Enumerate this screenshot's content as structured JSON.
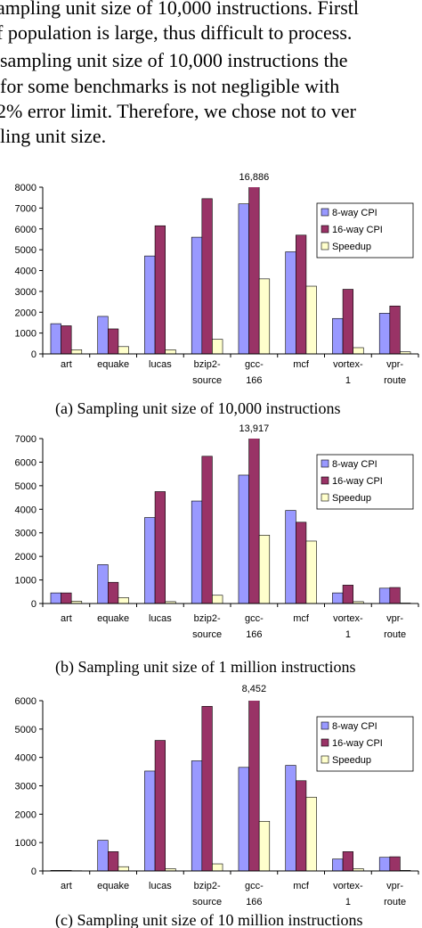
{
  "text_lines": [
    "ampling unit size of 10,000 instructions.  Firstl",
    "f population is large, thus difficult to process.",
    "sampling unit size of 10,000 instructions the",
    "for some benchmarks is not negligible with",
    "2% error limit. Therefore, we chose not to ver",
    "ling unit size."
  ],
  "chart_data": [
    {
      "type": "bar",
      "caption": "(a) Sampling unit size of 10,000 instructions",
      "categories": [
        "art",
        "equake",
        "lucas",
        "bzip2-\nsource",
        "gcc-\n166",
        "mcf",
        "vortex-\n1",
        "vpr-\nroute"
      ],
      "series": [
        {
          "name": "8-way CPI",
          "color": "#9999ff",
          "values": [
            1450,
            1800,
            4700,
            5600,
            7200,
            4900,
            1700,
            1950
          ]
        },
        {
          "name": "16-way CPI",
          "color": "#993366",
          "values": [
            1350,
            1200,
            6150,
            7450,
            16886,
            5700,
            3100,
            2300
          ],
          "value_labels": [
            null,
            null,
            null,
            null,
            "16,886",
            null,
            null,
            null
          ]
        },
        {
          "name": "Speedup",
          "color": "#ffffcc",
          "values": [
            200,
            350,
            200,
            700,
            3600,
            3250,
            300,
            100
          ]
        }
      ],
      "ylim": [
        0,
        8000
      ],
      "yticks": [
        0,
        1000,
        2000,
        3000,
        4000,
        5000,
        6000,
        7000,
        8000
      ],
      "legend": "upper right"
    },
    {
      "type": "bar",
      "caption": "(b) Sampling unit size of 1 million instructions",
      "categories": [
        "art",
        "equake",
        "lucas",
        "bzip2-\nsource",
        "gcc-\n166",
        "mcf",
        "vortex-\n1",
        "vpr-\nroute"
      ],
      "series": [
        {
          "name": "8-way CPI",
          "color": "#9999ff",
          "values": [
            450,
            1650,
            3650,
            4350,
            5450,
            3950,
            450,
            650
          ]
        },
        {
          "name": "16-way CPI",
          "color": "#993366",
          "values": [
            450,
            900,
            4750,
            6250,
            13917,
            3450,
            780,
            680
          ],
          "value_labels": [
            null,
            null,
            null,
            null,
            "13,917",
            null,
            null,
            null
          ]
        },
        {
          "name": "Speedup",
          "color": "#ffffcc",
          "values": [
            100,
            250,
            80,
            350,
            2900,
            2650,
            80,
            20
          ]
        }
      ],
      "ylim": [
        0,
        7000
      ],
      "yticks": [
        0,
        1000,
        2000,
        3000,
        4000,
        5000,
        6000,
        7000
      ],
      "legend": "upper right"
    },
    {
      "type": "bar",
      "caption": "(c) Sampling unit size of 10 million instructions",
      "categories": [
        "art",
        "equake",
        "lucas",
        "bzip2-\nsource",
        "gcc-\n166",
        "mcf",
        "vortex-\n1",
        "vpr-\nroute"
      ],
      "series": [
        {
          "name": "8-way CPI",
          "color": "#9999ff",
          "values": [
            20,
            1080,
            3520,
            3880,
            3650,
            3720,
            420,
            480
          ]
        },
        {
          "name": "16-way CPI",
          "color": "#993366",
          "values": [
            20,
            680,
            4600,
            5800,
            8452,
            3180,
            680,
            500
          ],
          "value_labels": [
            null,
            null,
            null,
            null,
            "8,452",
            null,
            null,
            null
          ]
        },
        {
          "name": "Speedup",
          "color": "#ffffcc",
          "values": [
            10,
            150,
            80,
            250,
            1750,
            2600,
            80,
            20
          ]
        }
      ],
      "ylim": [
        0,
        6000
      ],
      "yticks": [
        0,
        1000,
        2000,
        3000,
        4000,
        5000,
        6000
      ],
      "legend": "upper right"
    }
  ]
}
